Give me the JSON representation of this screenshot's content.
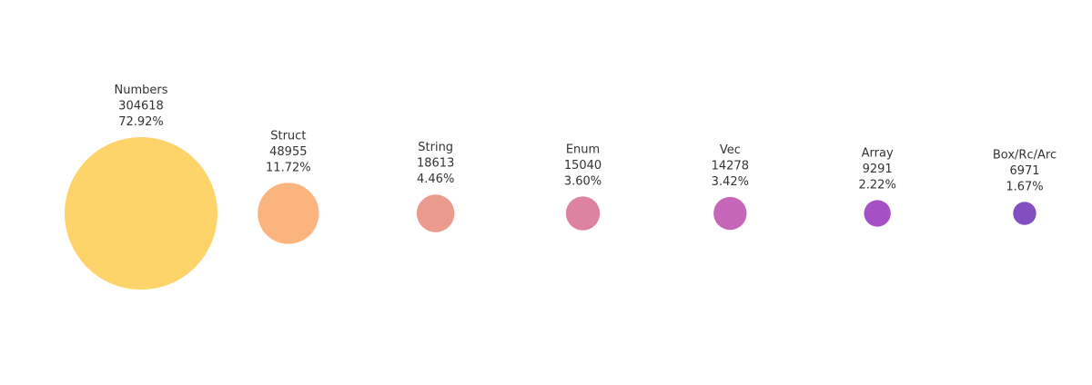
{
  "chart_data": {
    "type": "bubble",
    "title": "",
    "xlabel": "",
    "ylabel": "",
    "grid": false,
    "legend": false,
    "categories": [
      "Numbers",
      "Struct",
      "String",
      "Enum",
      "Vec",
      "Array",
      "Box/Rc/Arc"
    ],
    "values": [
      304618,
      48955,
      18613,
      15040,
      14278,
      9291,
      6971
    ],
    "percent_labels": [
      "72.92%",
      "11.72%",
      "4.46%",
      "3.60%",
      "3.42%",
      "2.22%",
      "1.67%"
    ],
    "colors": [
      "#fed36a",
      "#fbb47d",
      "#eb9a8e",
      "#dd82a0",
      "#c566b8",
      "#a650c6",
      "#814fc0"
    ]
  }
}
